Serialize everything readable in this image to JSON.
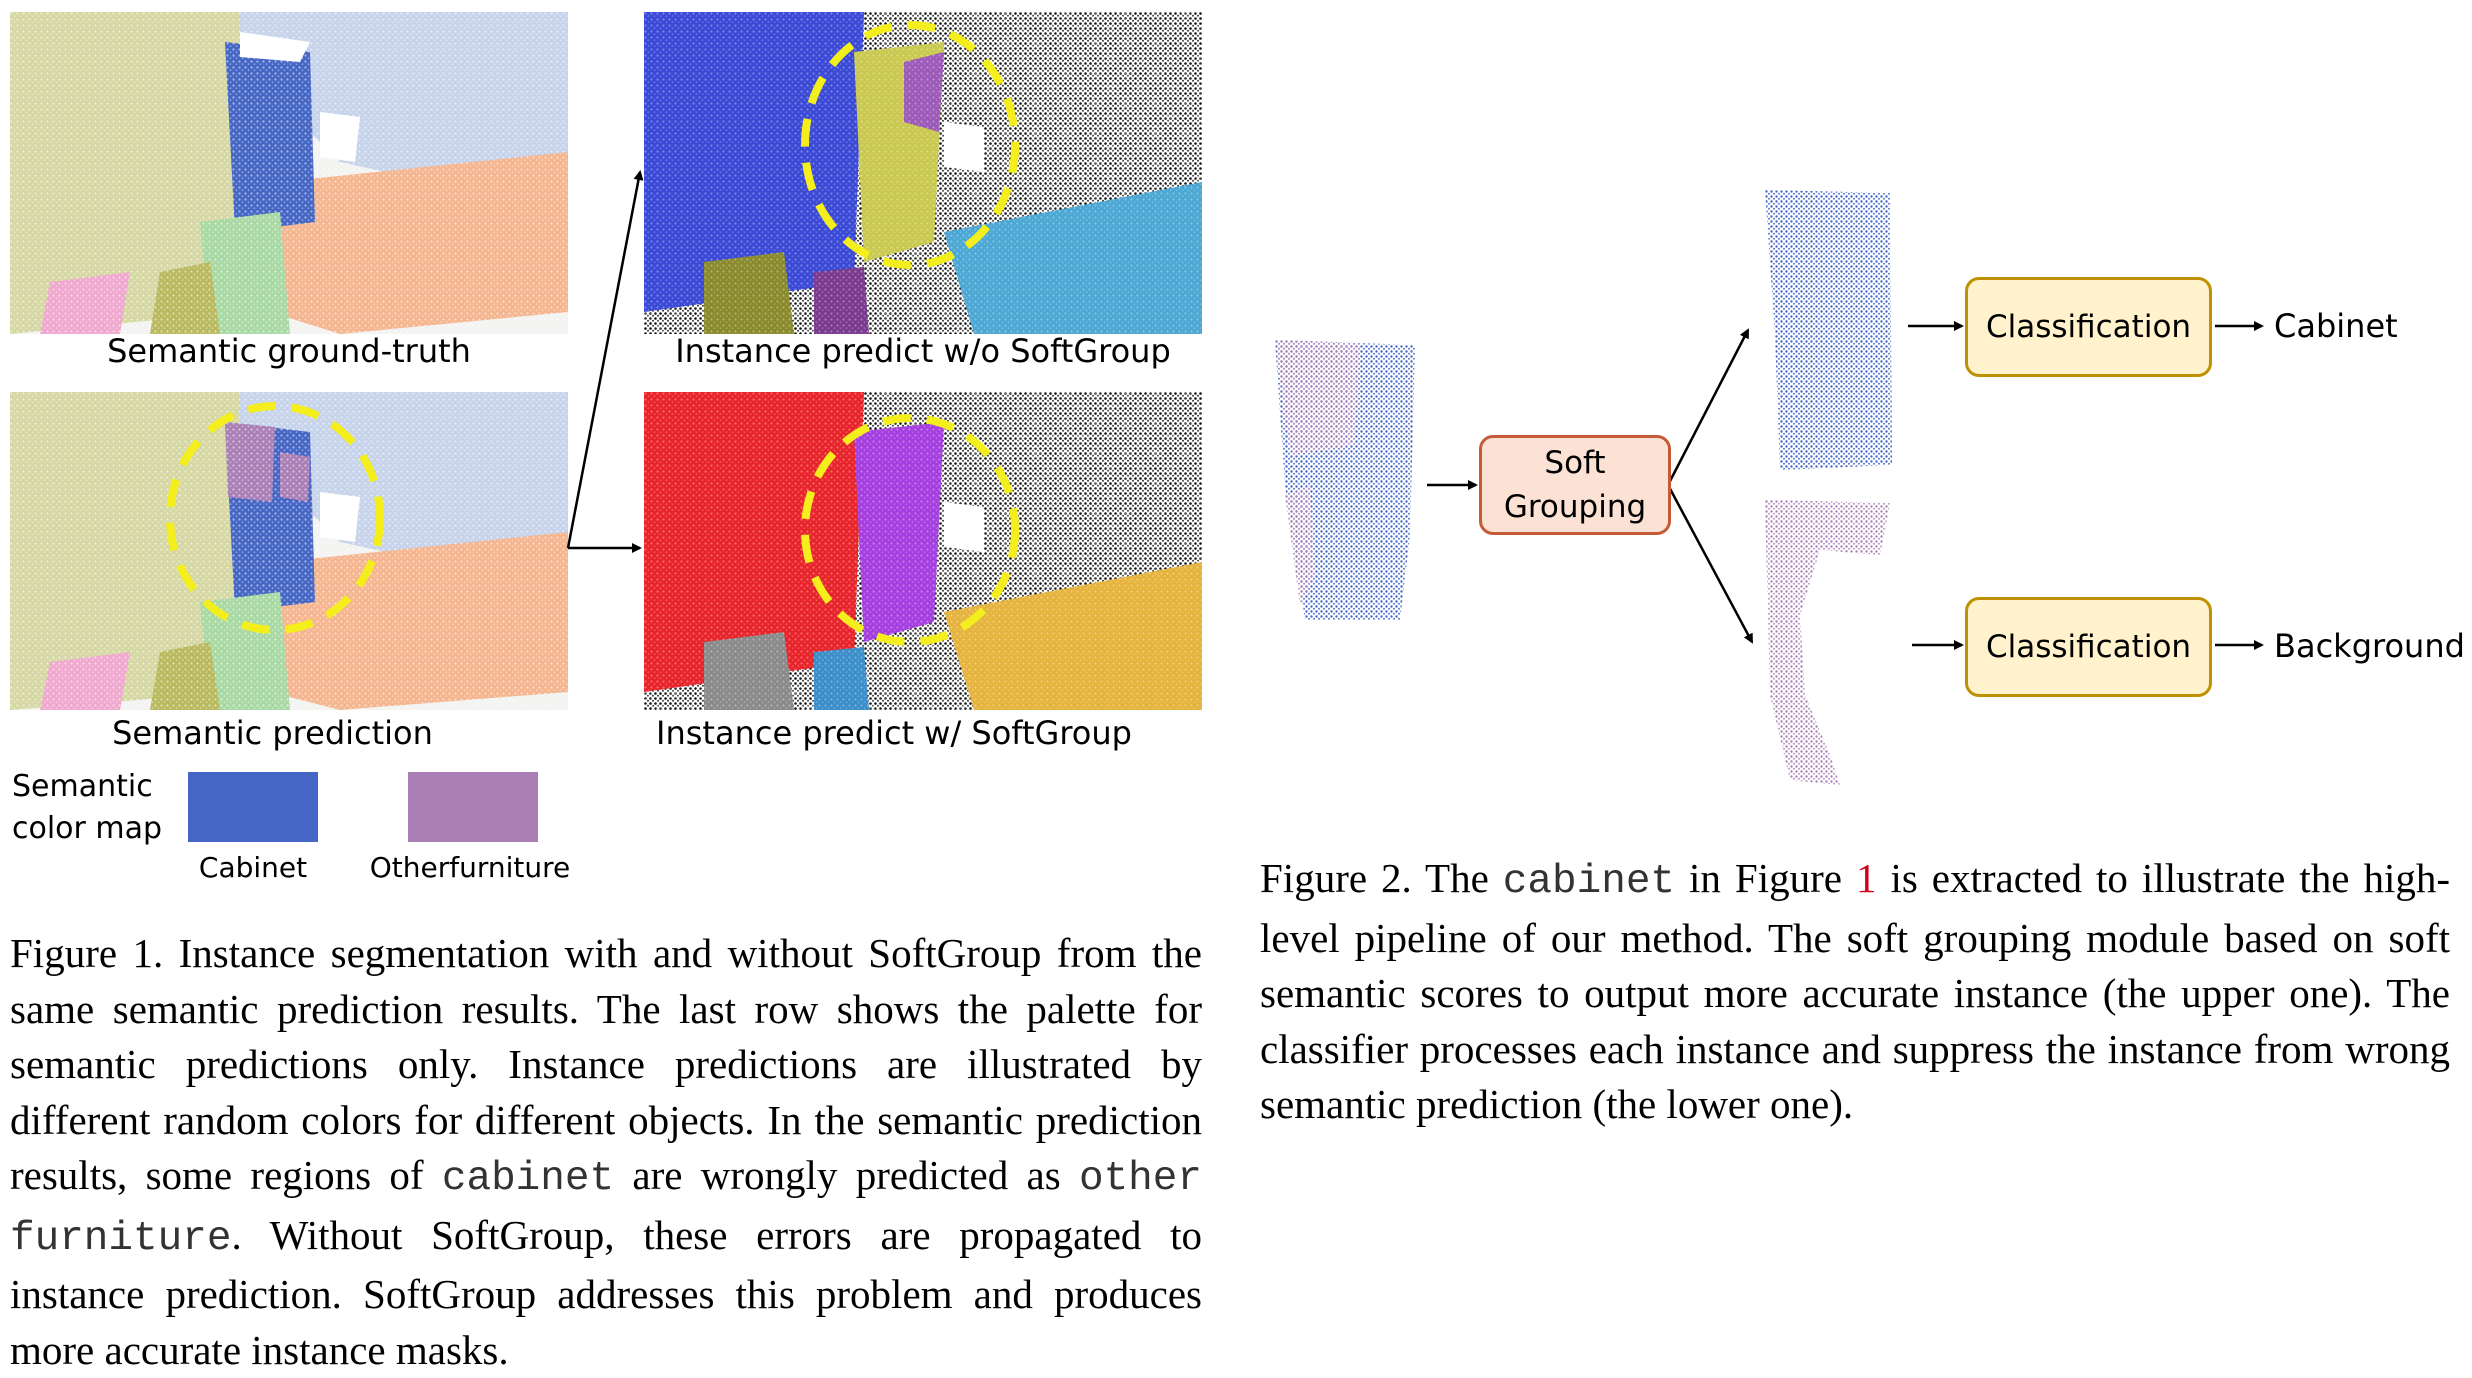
{
  "figure1": {
    "panels": [
      {
        "label": "Semantic ground-truth"
      },
      {
        "label": "Instance predict w/o SoftGroup"
      },
      {
        "label": "Semantic prediction"
      },
      {
        "label": "Instance predict w/ SoftGroup"
      }
    ],
    "color_map": {
      "title_line1": "Semantic",
      "title_line2": "color map",
      "entries": [
        {
          "label": "Cabinet",
          "color": "#4566c4"
        },
        {
          "label": "Otherfurniture",
          "color": "#a97fb6"
        }
      ]
    },
    "caption": {
      "part1": "Figure 1. Instance segmentation with and without SoftGroup from the same semantic prediction results.  The last row shows the palette for semantic predictions only.  Instance predictions are illustrated by different random colors for different objects. In the semantic prediction results, some regions of ",
      "code1": "cabinet",
      "part2": " are wrongly predicted as ",
      "code2": "other furniture",
      "part3": ". Without SoftGroup, these errors are propagated to instance prediction.  SoftGroup addresses this problem and produces more accurate instance masks."
    }
  },
  "figure2": {
    "soft_grouping_line1": "Soft",
    "soft_grouping_line2": "Grouping",
    "classification_top": "Classification",
    "classification_bottom": "Classification",
    "output_top": "Cabinet",
    "output_bottom": "Background",
    "caption": {
      "prefix": "Figure 2.  The ",
      "code": "cabinet",
      "mid": " in Figure ",
      "ref": "1",
      "rest": " is extracted to illustrate the high-level pipeline of our method.  The soft grouping module based on soft semantic scores to output more accurate instance (the upper one). The classifier processes each instance and suppress the instance from wrong semantic prediction (the lower one)."
    }
  },
  "colors": {
    "cabinet": "#4566c4",
    "otherfurniture": "#a97fb6",
    "wall_yellow": "#d6d8a4",
    "floor_orange": "#f5b58f",
    "wall_lightblue": "#c6d3ea",
    "highlight_yellow": "#f3ee1c",
    "box_orange_fill": "#fbe2d5",
    "box_orange_border": "#c55a36",
    "box_yellow_fill": "#fff2cc",
    "box_yellow_border": "#bf9000"
  }
}
